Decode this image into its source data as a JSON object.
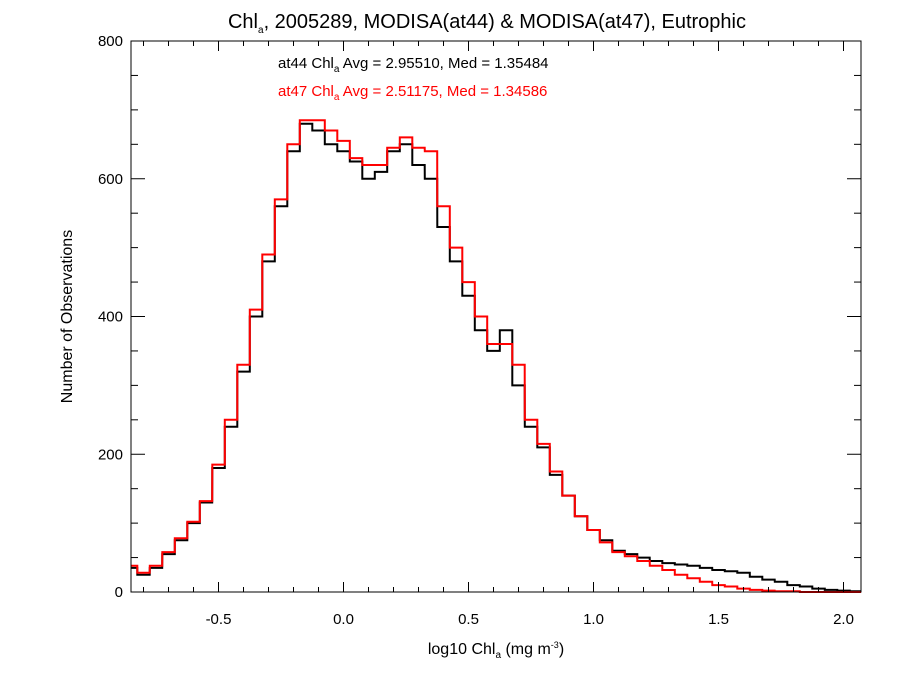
{
  "chart_data": {
    "type": "line",
    "title": {
      "pre": "Chl",
      "sub": "a",
      "post": ", 2005289, MODISA(at44) & MODISA(at47), Eutrophic"
    },
    "xlabel": {
      "pre": "log10 Chl",
      "sub": "a",
      "mid": " (mg m",
      "sup": "-3",
      "post": ")"
    },
    "ylabel": "Number of Observations",
    "xlim": [
      -0.85,
      2.07
    ],
    "ylim": [
      0,
      800
    ],
    "xticks": [
      -0.5,
      0.0,
      0.5,
      1.0,
      1.5,
      2.0
    ],
    "xtick_labels": [
      "-0.5",
      "0.0",
      "0.5",
      "1.0",
      "1.5",
      "2.0"
    ],
    "yticks": [
      0,
      200,
      400,
      600,
      800
    ],
    "ytick_labels": [
      "0",
      "200",
      "400",
      "600",
      "800"
    ],
    "grid": false,
    "annotations": [
      {
        "pre": "at44 Chl",
        "sub": "a",
        "post": " Avg = 2.95510, Med = 1.35484",
        "color": "#000000"
      },
      {
        "pre": "at47 Chl",
        "sub": "a",
        "post": " Avg = 2.51175, Med = 1.34586",
        "color": "#ff0000"
      }
    ],
    "x": [
      -0.85,
      -0.8,
      -0.75,
      -0.7,
      -0.65,
      -0.6,
      -0.55,
      -0.5,
      -0.45,
      -0.4,
      -0.35,
      -0.3,
      -0.25,
      -0.2,
      -0.15,
      -0.1,
      -0.05,
      0.0,
      0.05,
      0.1,
      0.15,
      0.2,
      0.25,
      0.3,
      0.35,
      0.4,
      0.45,
      0.5,
      0.55,
      0.6,
      0.65,
      0.7,
      0.75,
      0.8,
      0.85,
      0.9,
      0.95,
      1.0,
      1.05,
      1.1,
      1.15,
      1.2,
      1.25,
      1.3,
      1.35,
      1.4,
      1.45,
      1.5,
      1.55,
      1.6,
      1.65,
      1.7,
      1.75,
      1.8,
      1.85,
      1.9,
      1.95,
      2.0,
      2.05
    ],
    "series": [
      {
        "name": "at44",
        "color": "#000000",
        "values": [
          35,
          25,
          35,
          55,
          75,
          100,
          130,
          180,
          240,
          320,
          400,
          480,
          560,
          640,
          680,
          670,
          650,
          640,
          625,
          600,
          610,
          640,
          650,
          620,
          600,
          530,
          480,
          430,
          380,
          350,
          380,
          300,
          240,
          210,
          170,
          140,
          110,
          90,
          75,
          60,
          55,
          50,
          45,
          42,
          40,
          38,
          35,
          32,
          30,
          28,
          22,
          18,
          15,
          10,
          8,
          5,
          3,
          2,
          1
        ]
      },
      {
        "name": "at47",
        "color": "#ff0000",
        "values": [
          38,
          28,
          38,
          58,
          78,
          102,
          132,
          185,
          250,
          330,
          410,
          490,
          570,
          650,
          685,
          685,
          670,
          655,
          630,
          620,
          620,
          645,
          660,
          645,
          640,
          560,
          500,
          450,
          400,
          360,
          360,
          330,
          250,
          215,
          175,
          140,
          110,
          90,
          72,
          58,
          52,
          45,
          38,
          32,
          25,
          20,
          15,
          10,
          8,
          5,
          3,
          2,
          1,
          1,
          0,
          0,
          0,
          0,
          0
        ]
      }
    ]
  }
}
